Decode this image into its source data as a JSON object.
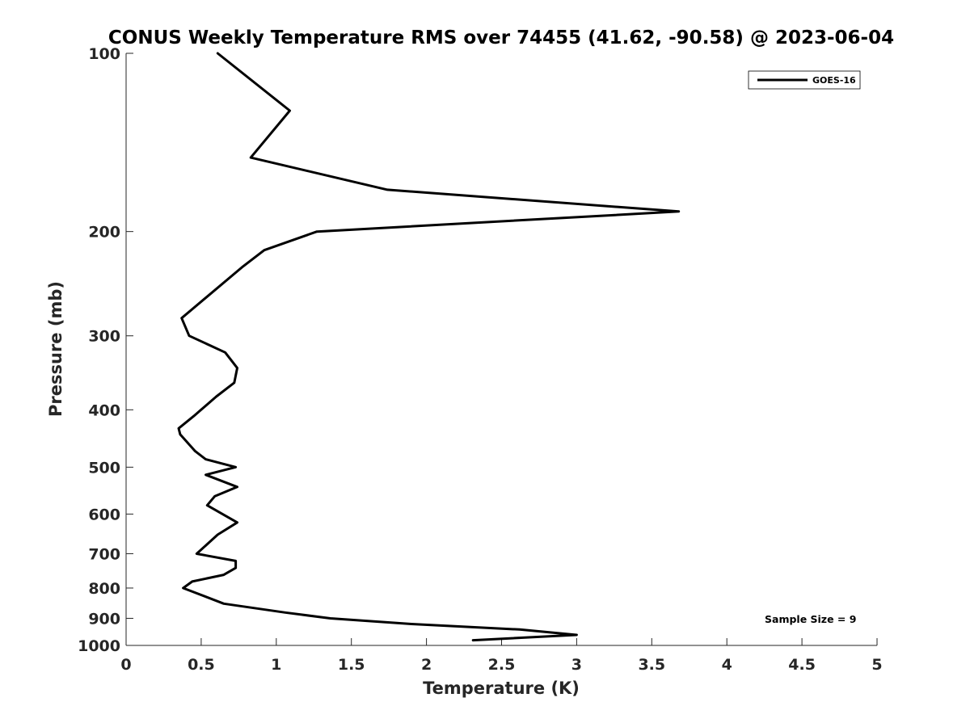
{
  "chart_data": {
    "type": "line",
    "title": "CONUS Weekly Temperature RMS over 74455 (41.62, -90.58) @ 2023-06-04",
    "xlabel": "Temperature (K)",
    "ylabel": "Pressure (mb)",
    "xlim": [
      0,
      5
    ],
    "ylim": [
      100,
      1000
    ],
    "y_scale": "log",
    "y_reversed": true,
    "xticks": [
      0,
      0.5,
      1,
      1.5,
      2,
      2.5,
      3,
      3.5,
      4,
      4.5,
      5
    ],
    "xtick_labels": [
      "0",
      "0.5",
      "1",
      "1.5",
      "2",
      "2.5",
      "3",
      "3.5",
      "4",
      "4.5",
      "5"
    ],
    "yticks": [
      100,
      200,
      300,
      400,
      500,
      600,
      700,
      800,
      900,
      1000
    ],
    "ytick_labels": [
      "100",
      "200",
      "300",
      "400",
      "500",
      "600",
      "700",
      "800",
      "900",
      "1000"
    ],
    "grid": false,
    "legend_position": "top-right",
    "series": [
      {
        "name": "GOES-16",
        "color": "#000000",
        "points": [
          {
            "x": 0.61,
            "y": 100
          },
          {
            "x": 1.09,
            "y": 125
          },
          {
            "x": 0.83,
            "y": 150
          },
          {
            "x": 1.74,
            "y": 170
          },
          {
            "x": 3.68,
            "y": 185
          },
          {
            "x": 1.27,
            "y": 200
          },
          {
            "x": 0.92,
            "y": 215
          },
          {
            "x": 0.77,
            "y": 230
          },
          {
            "x": 0.37,
            "y": 280
          },
          {
            "x": 0.42,
            "y": 300
          },
          {
            "x": 0.66,
            "y": 320
          },
          {
            "x": 0.74,
            "y": 340
          },
          {
            "x": 0.72,
            "y": 360
          },
          {
            "x": 0.6,
            "y": 380
          },
          {
            "x": 0.45,
            "y": 410
          },
          {
            "x": 0.35,
            "y": 430
          },
          {
            "x": 0.36,
            "y": 440
          },
          {
            "x": 0.46,
            "y": 470
          },
          {
            "x": 0.53,
            "y": 485
          },
          {
            "x": 0.73,
            "y": 500
          },
          {
            "x": 0.53,
            "y": 515
          },
          {
            "x": 0.74,
            "y": 540
          },
          {
            "x": 0.59,
            "y": 560
          },
          {
            "x": 0.54,
            "y": 580
          },
          {
            "x": 0.74,
            "y": 620
          },
          {
            "x": 0.61,
            "y": 650
          },
          {
            "x": 0.47,
            "y": 700
          },
          {
            "x": 0.73,
            "y": 720
          },
          {
            "x": 0.73,
            "y": 740
          },
          {
            "x": 0.65,
            "y": 760
          },
          {
            "x": 0.44,
            "y": 780
          },
          {
            "x": 0.38,
            "y": 800
          },
          {
            "x": 0.65,
            "y": 850
          },
          {
            "x": 1.06,
            "y": 880
          },
          {
            "x": 1.36,
            "y": 900
          },
          {
            "x": 1.9,
            "y": 920
          },
          {
            "x": 2.62,
            "y": 940
          },
          {
            "x": 3.0,
            "y": 960
          },
          {
            "x": 2.31,
            "y": 980
          }
        ]
      }
    ],
    "annotation": "Sample Size = 9"
  }
}
